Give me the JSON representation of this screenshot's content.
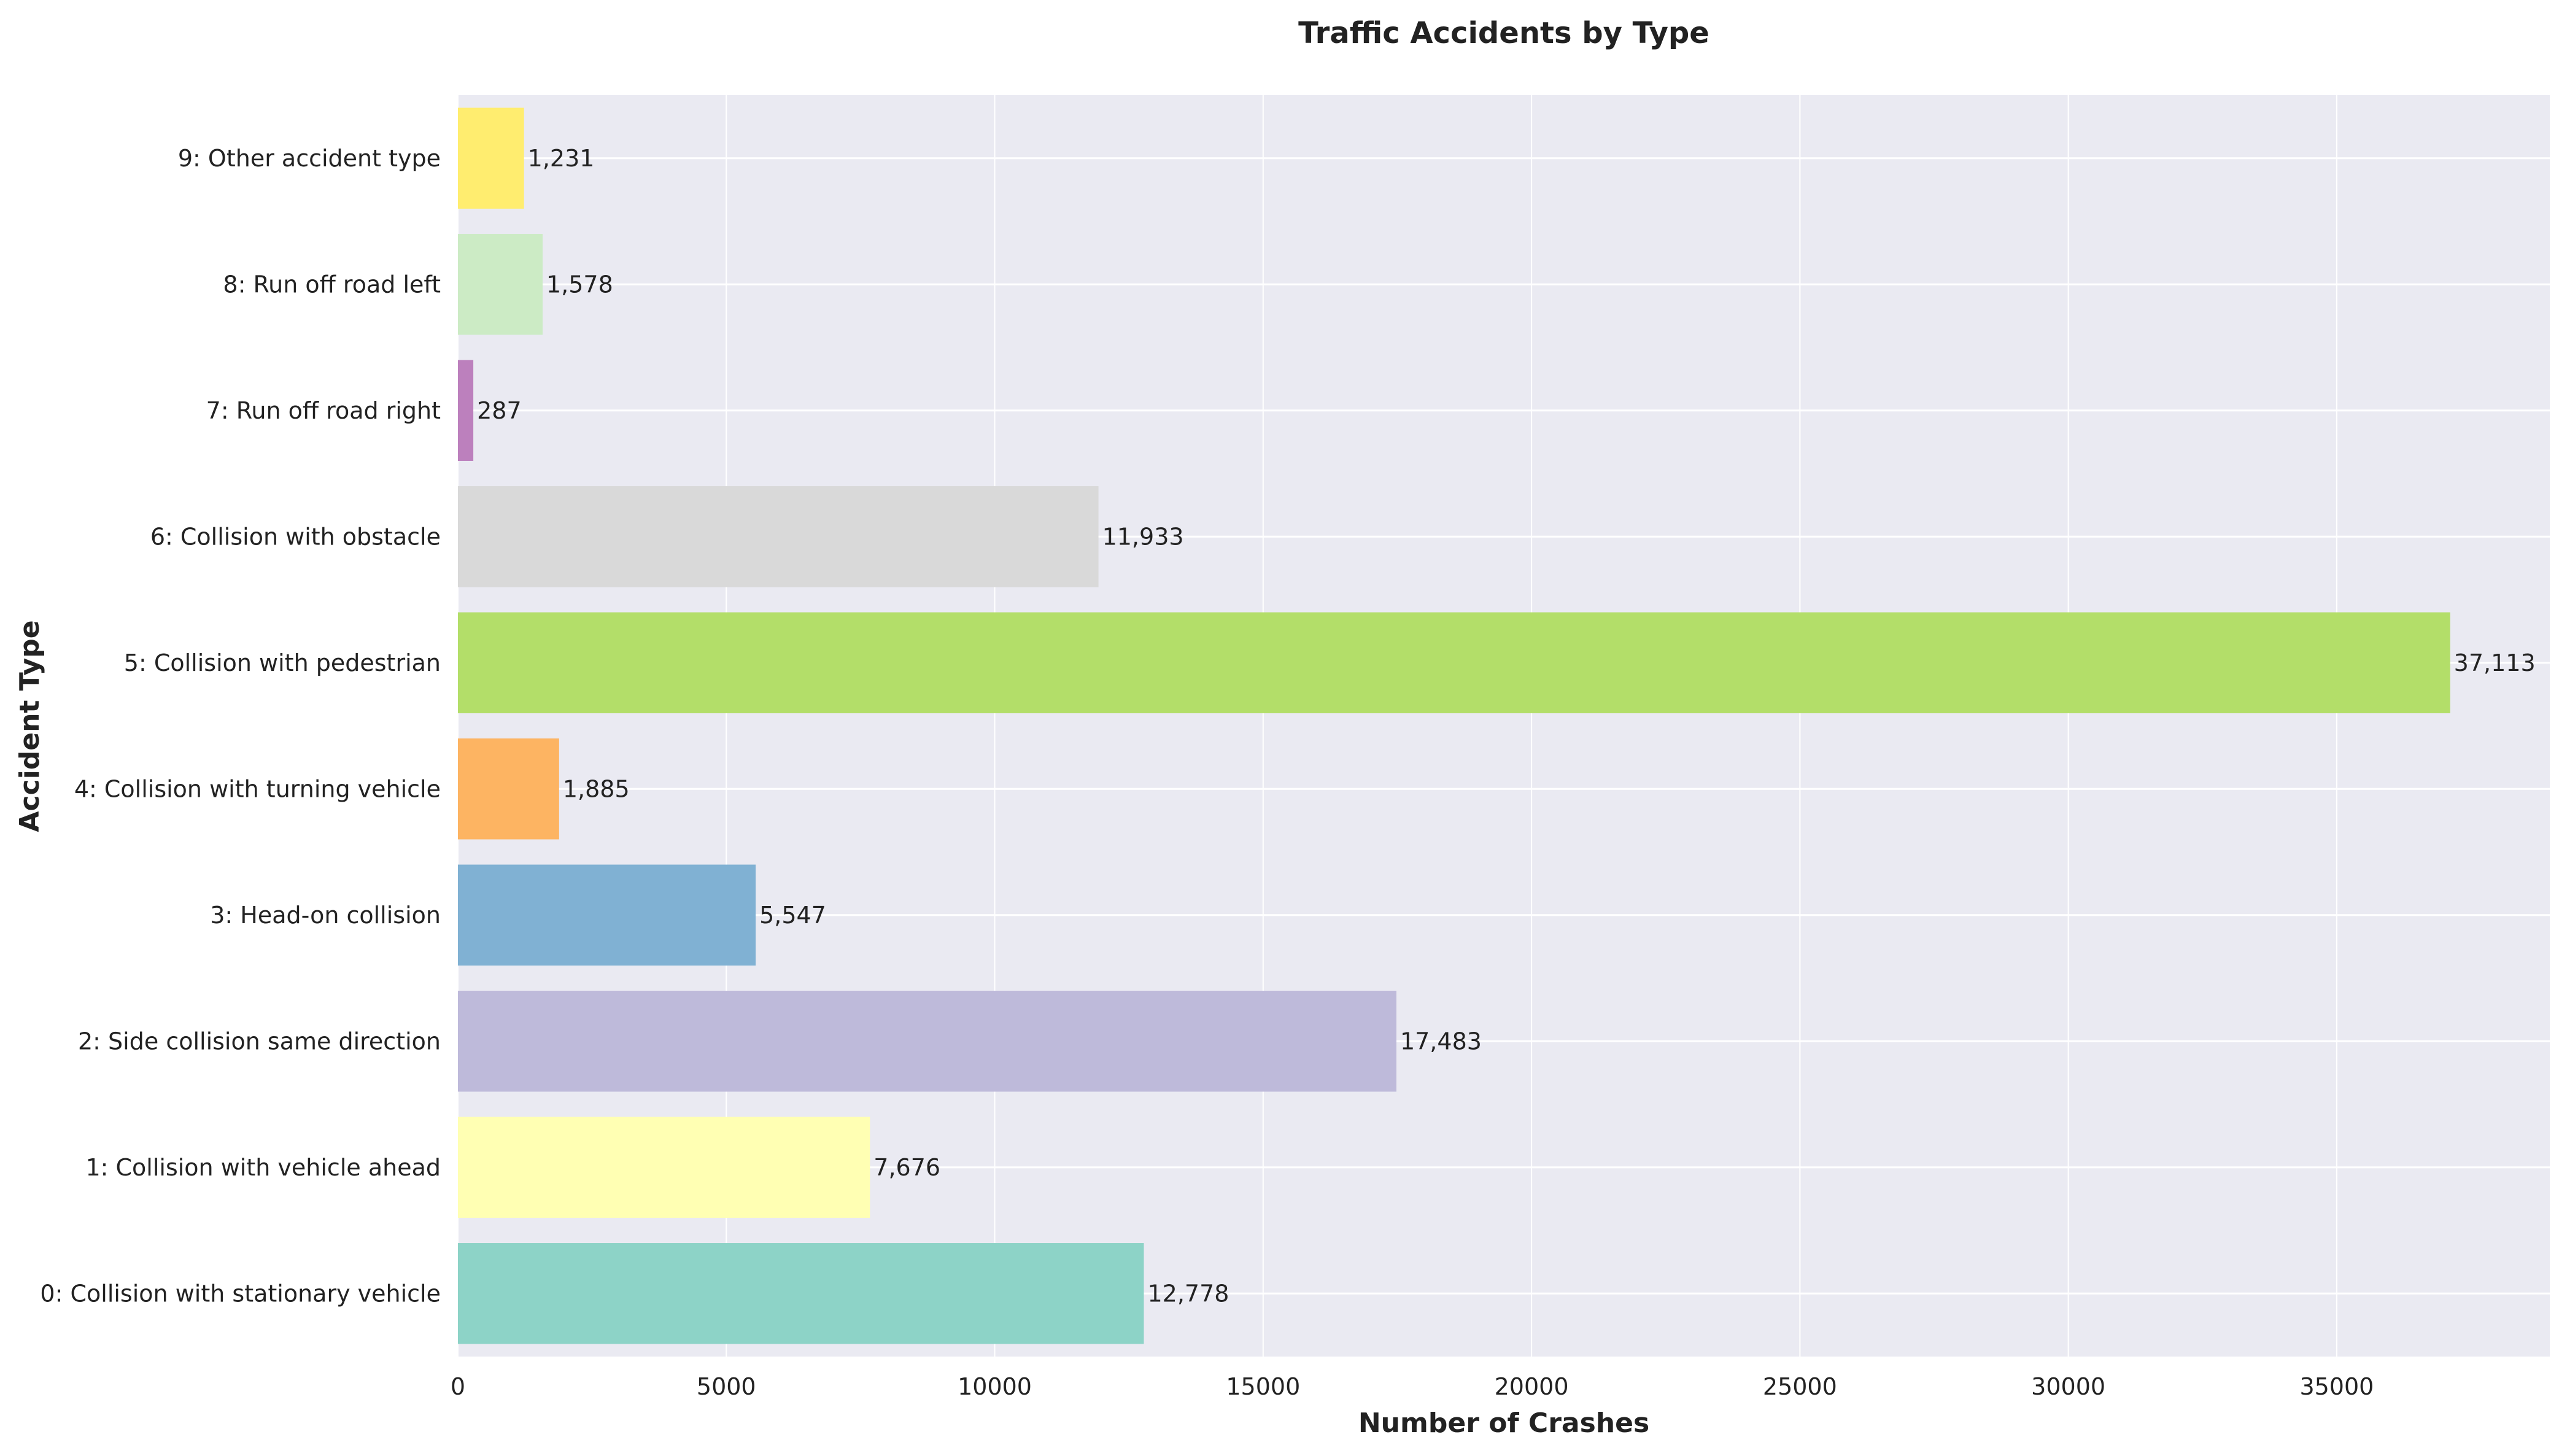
{
  "chart_data": {
    "type": "bar",
    "orientation": "horizontal",
    "title": "Traffic Accidents by Type",
    "xlabel": "Number of Crashes",
    "ylabel": "Accident Type",
    "xlim": [
      0,
      38969
    ],
    "x_ticks": [
      0,
      5000,
      10000,
      15000,
      20000,
      25000,
      30000,
      35000
    ],
    "grid": true,
    "legend": "none",
    "categories": [
      "0: Collision with stationary vehicle",
      "1: Collision with vehicle ahead",
      "2: Side collision same direction",
      "3: Head-on collision",
      "4: Collision with turning vehicle",
      "5: Collision with pedestrian",
      "6: Collision with obstacle",
      "7: Run off road right",
      "8: Run off road left",
      "9: Other accident type"
    ],
    "values": [
      12778,
      7676,
      17483,
      5547,
      1885,
      37113,
      11933,
      287,
      1578,
      1231
    ],
    "value_labels": [
      "12,778",
      "7,676",
      "17,483",
      "5,547",
      "1,885",
      "37,113",
      "11,933",
      "287",
      "1,578",
      "1,231"
    ],
    "colors": [
      "#8dd3c7",
      "#ffffb3",
      "#bebada",
      "#80b1d3",
      "#fdb462",
      "#b3de69",
      "#d9d9d9",
      "#bc80bd",
      "#ccebc5",
      "#ffed6f"
    ],
    "plot_background": "#eaeaf2",
    "grid_color": "#ffffff"
  }
}
